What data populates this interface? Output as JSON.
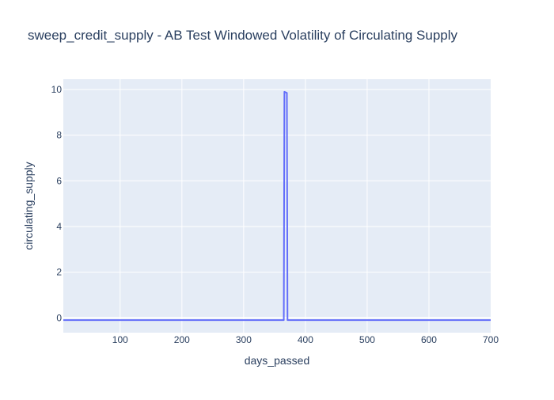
{
  "chart_data": {
    "type": "line",
    "title": "sweep_credit_supply - AB Test Windowed Volatility of Circulating Supply",
    "xlabel": "days_passed",
    "ylabel": "circulating_supply",
    "xlim": [
      8,
      700
    ],
    "ylim": [
      -0.65,
      10.45
    ],
    "xticks": [
      100,
      200,
      300,
      400,
      500,
      600,
      700
    ],
    "yticks": [
      0,
      2,
      4,
      6,
      8,
      10
    ],
    "grid": true,
    "legend": "none",
    "colors": {
      "plot_bg": "#E5ECF6",
      "grid": "#ffffff",
      "line": "#636EFA",
      "text": "#2A3F5F"
    },
    "series": [
      {
        "x": [
          8,
          365,
          366,
          370,
          371,
          700
        ],
        "y": [
          -0.1,
          -0.1,
          9.9,
          9.85,
          -0.1,
          -0.1
        ]
      }
    ]
  }
}
